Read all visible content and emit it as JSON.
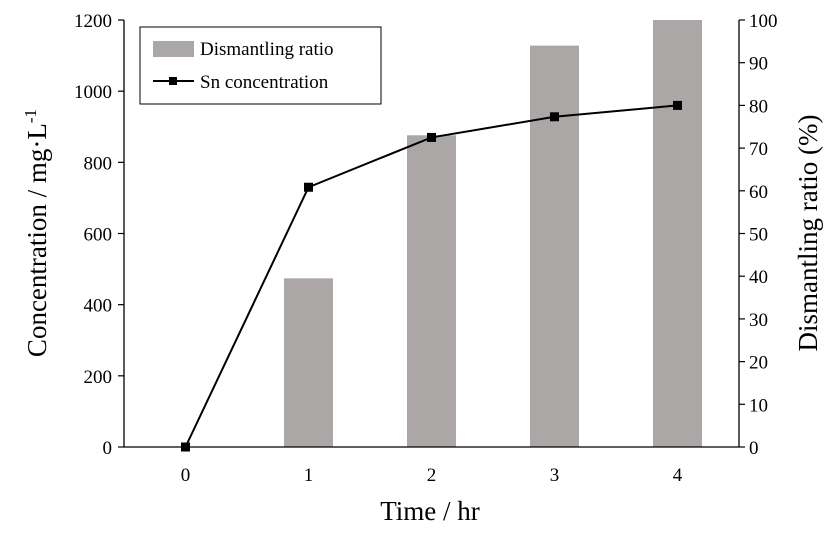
{
  "chart_data": {
    "type": "bar+line",
    "title": "",
    "categories": [
      "0",
      "1",
      "2",
      "3",
      "4"
    ],
    "xlabel": "Time / hr",
    "ylabel_left": "Concentration / mg·L",
    "ylabel_left_sup": "-1",
    "ylabel_right": "Dismantling ratio (%)",
    "ylim_left": [
      0,
      1200
    ],
    "yticks_left": [
      "0",
      "200",
      "400",
      "600",
      "800",
      "1000",
      "1200"
    ],
    "ylim_right": [
      0,
      100
    ],
    "yticks_right": [
      "0",
      "10",
      "20",
      "30",
      "40",
      "50",
      "60",
      "70",
      "80",
      "90",
      "100"
    ],
    "grid": false,
    "legend_position": "top-left",
    "series": [
      {
        "name": "Dismantling ratio",
        "type": "bar",
        "axis": "right",
        "color": "#ABA7A7",
        "values": [
          0,
          39.5,
          73,
          94,
          100
        ]
      },
      {
        "name": "Sn concentration",
        "type": "line",
        "axis": "left",
        "color": "#000000",
        "marker": "square",
        "values": [
          0,
          730,
          870,
          928,
          960
        ]
      }
    ]
  }
}
